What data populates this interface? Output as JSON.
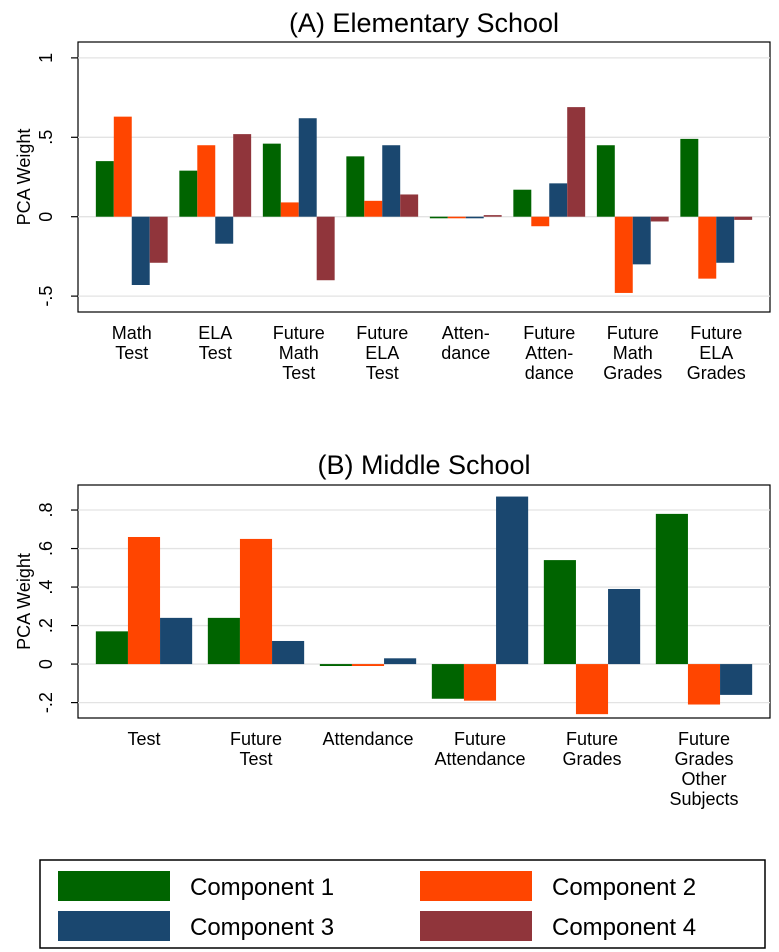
{
  "chart_data": [
    {
      "type": "bar",
      "title": "(A) Elementary School",
      "ylabel": "PCA Weight",
      "xlabel": "",
      "ylim": [
        -0.6,
        1.1
      ],
      "yticks": [
        "1",
        ".5",
        "0",
        "-.5"
      ],
      "ytick_values": [
        1,
        0.5,
        0,
        -0.5
      ],
      "grid": true,
      "categories": [
        [
          "Math",
          "Test"
        ],
        [
          "ELA",
          "Test"
        ],
        [
          "Future",
          "Math",
          "Test"
        ],
        [
          "Future",
          "ELA",
          "Test"
        ],
        [
          "Atten-",
          "dance"
        ],
        [
          "Future",
          "Atten-",
          "dance"
        ],
        [
          "Future",
          "Math",
          "Grades"
        ],
        [
          "Future",
          "ELA",
          "Grades"
        ]
      ],
      "series": [
        {
          "name": "Component 1",
          "values": [
            0.35,
            0.29,
            0.46,
            0.38,
            -0.01,
            0.17,
            0.45,
            0.49
          ]
        },
        {
          "name": "Component 2",
          "values": [
            0.63,
            0.45,
            0.09,
            0.1,
            -0.01,
            -0.06,
            -0.48,
            -0.39
          ]
        },
        {
          "name": "Component 3",
          "values": [
            -0.43,
            -0.17,
            0.62,
            0.45,
            -0.01,
            0.21,
            -0.3,
            -0.29
          ]
        },
        {
          "name": "Component 4",
          "values": [
            -0.29,
            0.52,
            -0.4,
            0.14,
            0.01,
            0.69,
            -0.03,
            -0.02
          ]
        }
      ]
    },
    {
      "type": "bar",
      "title": "(B) Middle School",
      "ylabel": "PCA Weight",
      "xlabel": "",
      "ylim": [
        -0.28,
        0.93
      ],
      "yticks": [
        ".8",
        ".6",
        ".4",
        ".2",
        "0",
        "-.2"
      ],
      "ytick_values": [
        0.8,
        0.6,
        0.4,
        0.2,
        0,
        -0.2
      ],
      "grid": true,
      "categories": [
        [
          "Test"
        ],
        [
          "Future",
          "Test"
        ],
        [
          "Attendance"
        ],
        [
          "Future",
          "Attendance"
        ],
        [
          "Future",
          "Grades"
        ],
        [
          "Future",
          "Grades",
          "Other",
          "Subjects"
        ]
      ],
      "series": [
        {
          "name": "Component 1",
          "values": [
            0.17,
            0.24,
            -0.01,
            -0.18,
            0.54,
            0.78
          ]
        },
        {
          "name": "Component 2",
          "values": [
            0.66,
            0.65,
            -0.01,
            -0.19,
            -0.26,
            -0.21
          ]
        },
        {
          "name": "Component 3",
          "values": [
            0.24,
            0.12,
            0.03,
            0.87,
            0.39,
            -0.16
          ]
        }
      ]
    }
  ],
  "legend": {
    "placement": "bottom",
    "items": [
      {
        "label": "Component 1",
        "color": "#006400"
      },
      {
        "label": "Component 2",
        "color": "#ff4500"
      },
      {
        "label": "Component 3",
        "color": "#1a476f"
      },
      {
        "label": "Component 4",
        "color": "#90353b"
      }
    ]
  }
}
